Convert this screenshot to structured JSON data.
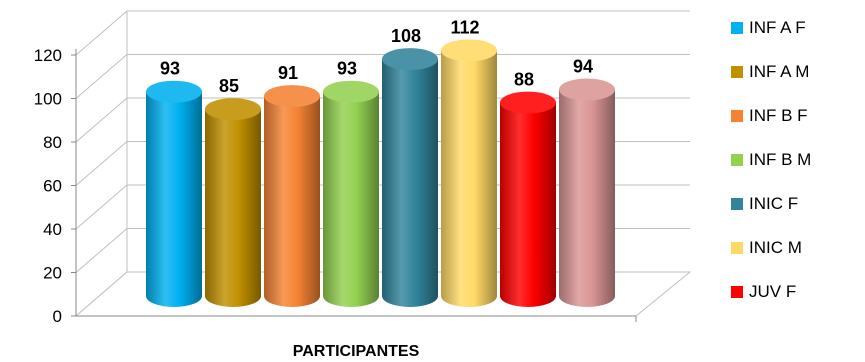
{
  "chart_data": {
    "type": "bar",
    "style": "3d-cylinder",
    "categories": [
      "PARTICIPANTES"
    ],
    "series": [
      {
        "name": "INF A F",
        "value": 93,
        "color": "#00b0f0"
      },
      {
        "name": "INF A M",
        "value": 85,
        "color": "#c09000"
      },
      {
        "name": "INF B F",
        "value": 91,
        "color": "#f58233"
      },
      {
        "name": "INF B M",
        "value": 93,
        "color": "#92d050"
      },
      {
        "name": "INIC F",
        "value": 108,
        "color": "#31849b"
      },
      {
        "name": "INIC M",
        "value": 112,
        "color": "#ffd966"
      },
      {
        "name": "JUV F",
        "value": 88,
        "color": "#ff0000"
      },
      {
        "name": "",
        "value": 94,
        "color": "#d99594"
      }
    ],
    "xlabel": "PARTICIPANTES",
    "ylim": [
      0,
      120
    ],
    "yticks": [
      0,
      20,
      40,
      60,
      80,
      100,
      120
    ],
    "grid": true,
    "legend_position": "right"
  }
}
